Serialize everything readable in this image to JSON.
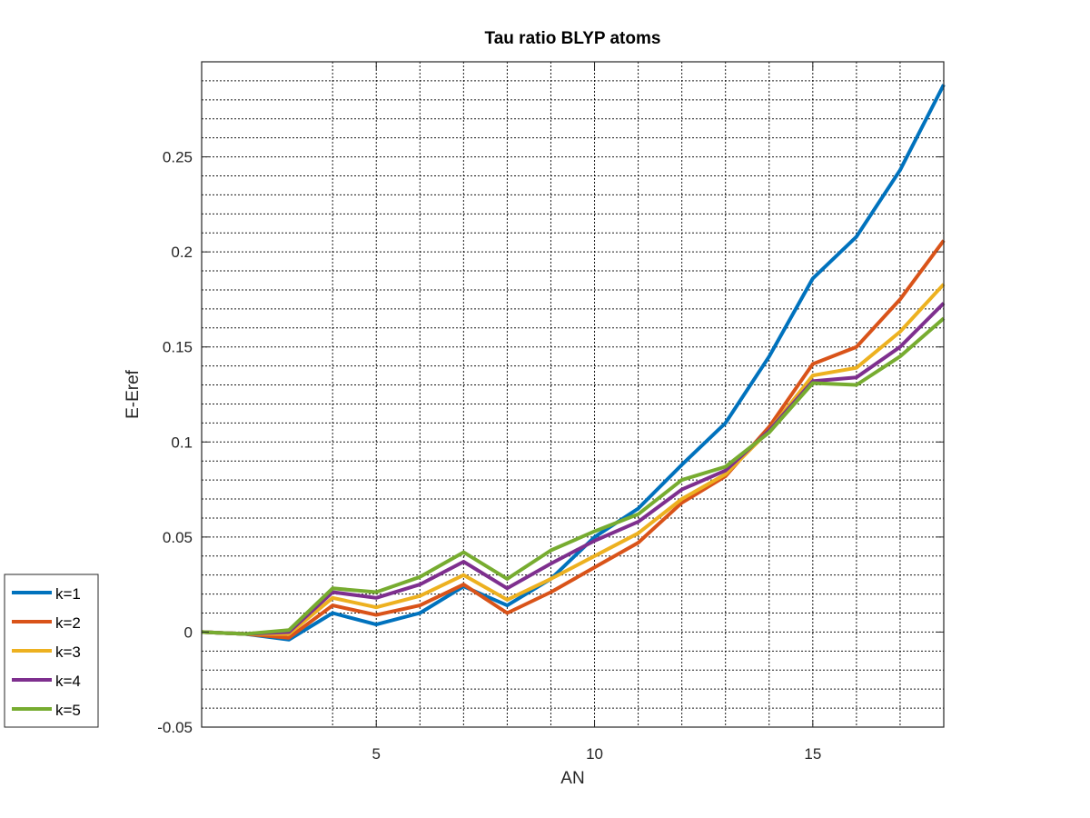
{
  "chart_data": {
    "type": "line",
    "title": "Tau ratio BLYP atoms",
    "xlabel": "AN",
    "ylabel": "E-Eref",
    "xlim": [
      1,
      18
    ],
    "ylim": [
      -0.05,
      0.3
    ],
    "xticks": [
      5,
      10,
      15
    ],
    "yticks": [
      -0.05,
      0,
      0.05,
      0.1,
      0.15,
      0.2,
      0.25
    ],
    "ytick_labels": [
      "-0.05",
      "0",
      "0.05",
      "0.1",
      "0.15",
      "0.2",
      "0.25"
    ],
    "xtick_labels": [
      "5",
      "10",
      "15"
    ],
    "grid": true,
    "legend_position": "outside-bottom-left",
    "x": [
      1,
      2,
      3,
      4,
      5,
      6,
      7,
      8,
      9,
      10,
      11,
      12,
      13,
      14,
      15,
      16,
      17,
      18
    ],
    "series": [
      {
        "name": "k=1",
        "color": "#0072BD",
        "values": [
          0,
          -0.001,
          -0.004,
          0.01,
          0.004,
          0.01,
          0.024,
          0.014,
          0.028,
          0.05,
          0.065,
          0.088,
          0.11,
          0.145,
          0.186,
          0.208,
          0.243,
          0.288
        ]
      },
      {
        "name": "k=2",
        "color": "#D95319",
        "values": [
          0,
          -0.001,
          -0.003,
          0.014,
          0.009,
          0.014,
          0.025,
          0.01,
          0.021,
          0.034,
          0.047,
          0.068,
          0.082,
          0.108,
          0.141,
          0.15,
          0.175,
          0.206
        ]
      },
      {
        "name": "k=3",
        "color": "#EDB120",
        "values": [
          0,
          -0.001,
          -0.001,
          0.018,
          0.013,
          0.019,
          0.03,
          0.017,
          0.028,
          0.04,
          0.052,
          0.07,
          0.083,
          0.106,
          0.135,
          0.139,
          0.158,
          0.183
        ]
      },
      {
        "name": "k=4",
        "color": "#7E2F8E",
        "values": [
          0,
          -0.001,
          0,
          0.021,
          0.018,
          0.025,
          0.037,
          0.023,
          0.036,
          0.048,
          0.058,
          0.075,
          0.085,
          0.106,
          0.132,
          0.134,
          0.15,
          0.173
        ]
      },
      {
        "name": "k=5",
        "color": "#77AC30",
        "values": [
          0,
          -0.001,
          0.001,
          0.023,
          0.021,
          0.029,
          0.042,
          0.028,
          0.043,
          0.053,
          0.062,
          0.08,
          0.087,
          0.105,
          0.131,
          0.13,
          0.145,
          0.165
        ]
      }
    ]
  }
}
